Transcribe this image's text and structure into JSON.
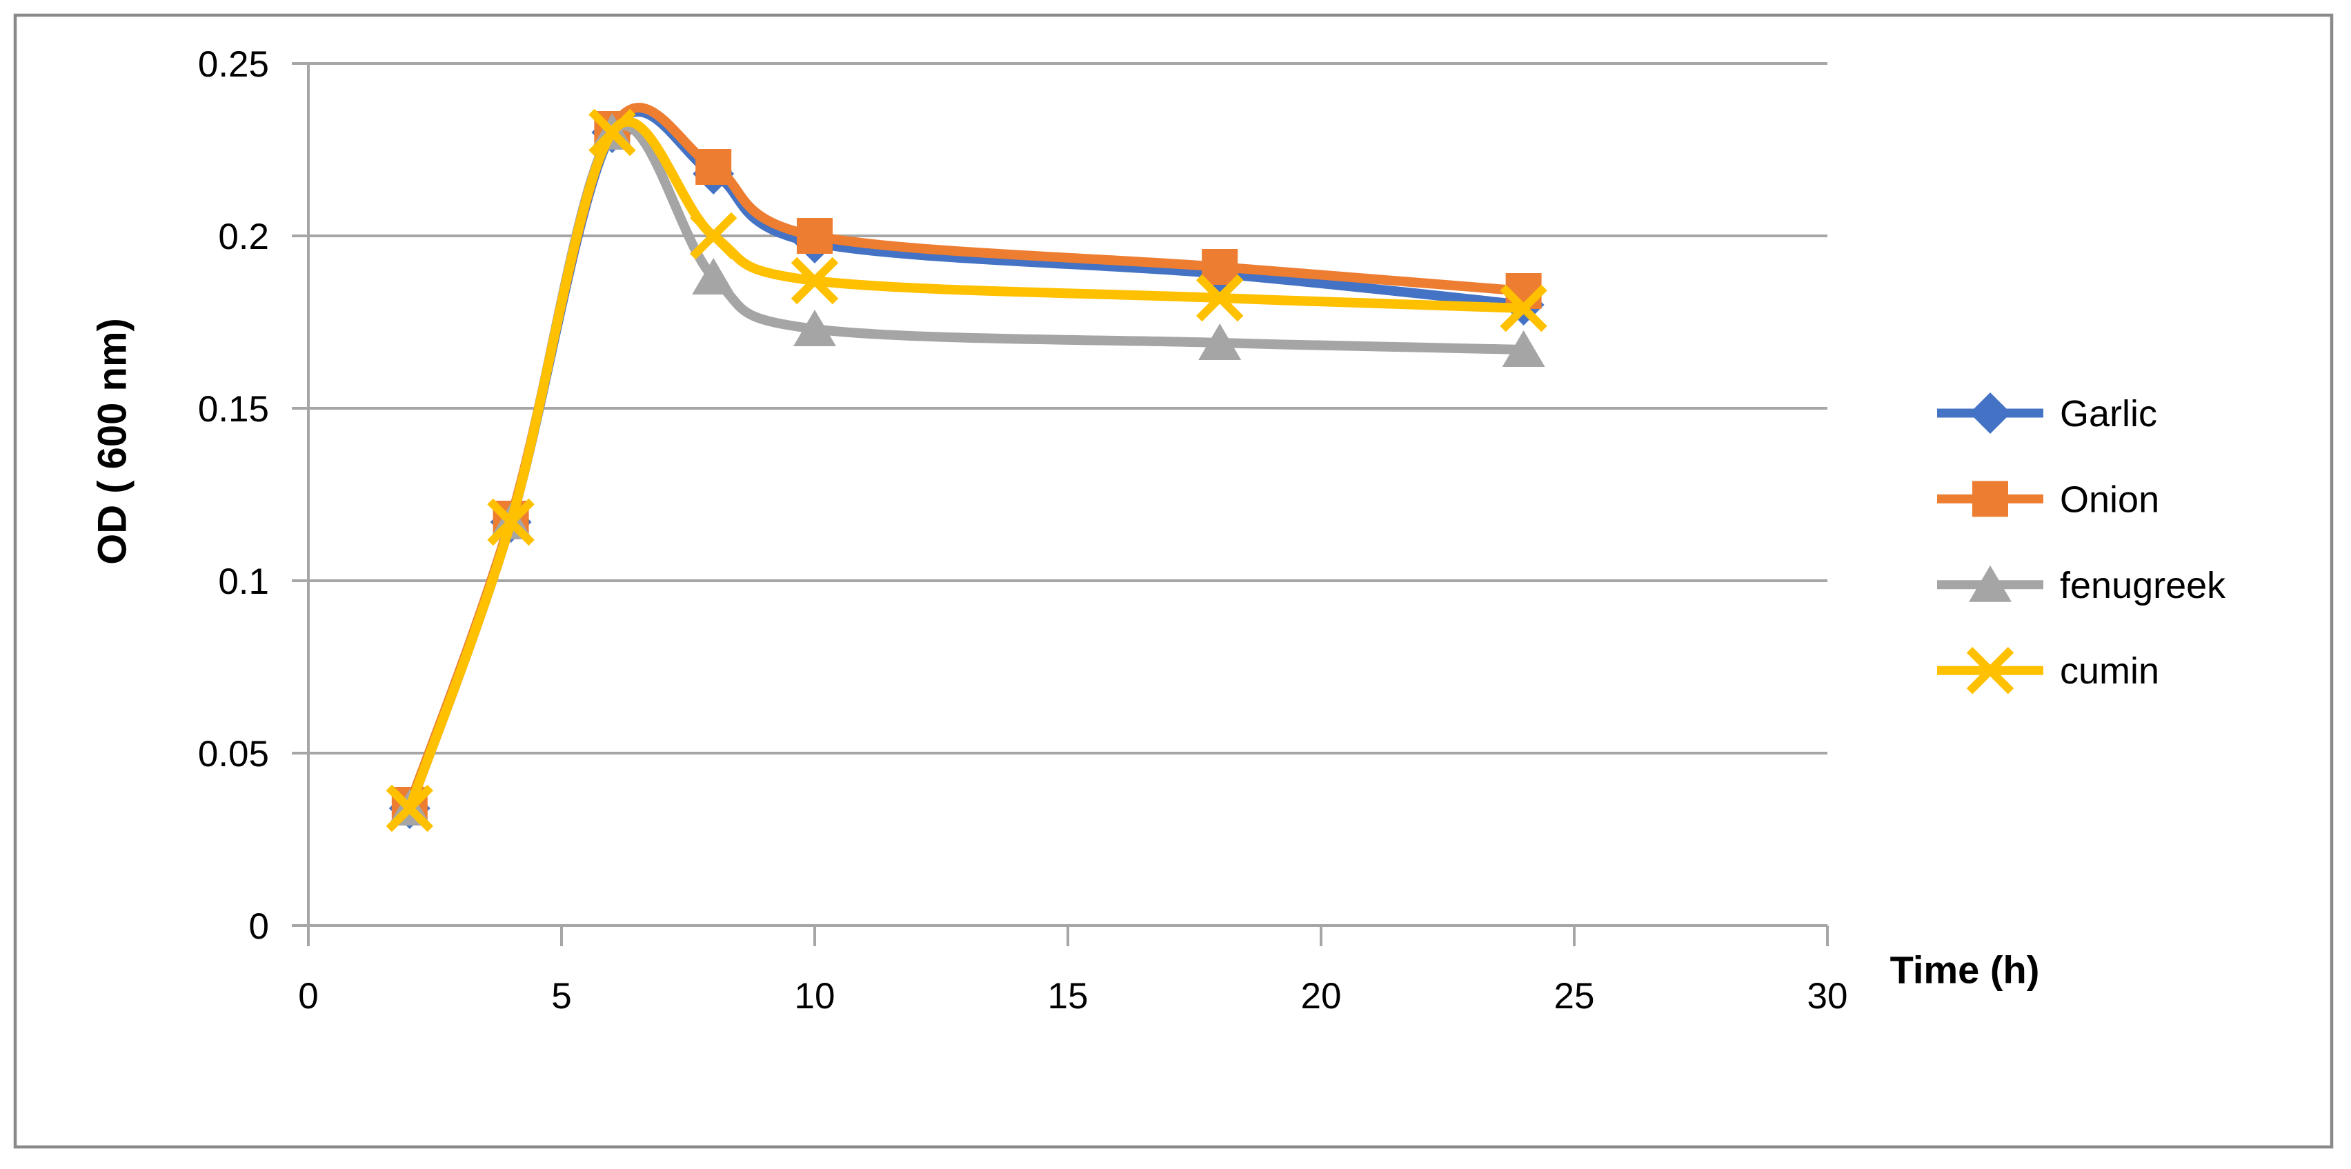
{
  "figure": {
    "background": "#FFFFFF",
    "border_color": "#898989",
    "gridline_color": "#A6A6A6",
    "axis_color": "#A6A6A6",
    "text_color": "#000000"
  },
  "chart_data": {
    "type": "line",
    "smooth": true,
    "title": "",
    "xlabel": "Time (h)",
    "ylabel": "OD ( 600 nm)",
    "x": [
      2,
      4,
      6,
      8,
      10,
      18,
      24
    ],
    "xlim": [
      0,
      30
    ],
    "ylim": [
      0,
      0.25
    ],
    "x_ticks": [
      0,
      5,
      10,
      15,
      20,
      25,
      30
    ],
    "x_tick_labels": [
      "0",
      "5",
      "10",
      "15",
      "20",
      "25",
      "30"
    ],
    "y_ticks": [
      0,
      0.05,
      0.1,
      0.15,
      0.2,
      0.25
    ],
    "y_tick_labels": [
      "0",
      "0.05",
      "0.1",
      "0.15",
      "0.2",
      "0.25"
    ],
    "grid": "horizontal",
    "legend_position": "right",
    "series": [
      {
        "name": "Garlic",
        "color": "#4472C4",
        "marker": "diamond",
        "values": [
          0.034,
          0.117,
          0.23,
          0.218,
          0.198,
          0.189,
          0.18
        ]
      },
      {
        "name": "Onion",
        "color": "#ED7D31",
        "marker": "square",
        "values": [
          0.035,
          0.118,
          0.231,
          0.22,
          0.2,
          0.191,
          0.184
        ]
      },
      {
        "name": "fenugreek",
        "color": "#A5A5A5",
        "marker": "triangle",
        "values": [
          0.034,
          0.117,
          0.23,
          0.188,
          0.173,
          0.169,
          0.167
        ]
      },
      {
        "name": "cumin",
        "color": "#FFC000",
        "marker": "x",
        "values": [
          0.034,
          0.117,
          0.23,
          0.2,
          0.187,
          0.182,
          0.179
        ]
      }
    ]
  }
}
